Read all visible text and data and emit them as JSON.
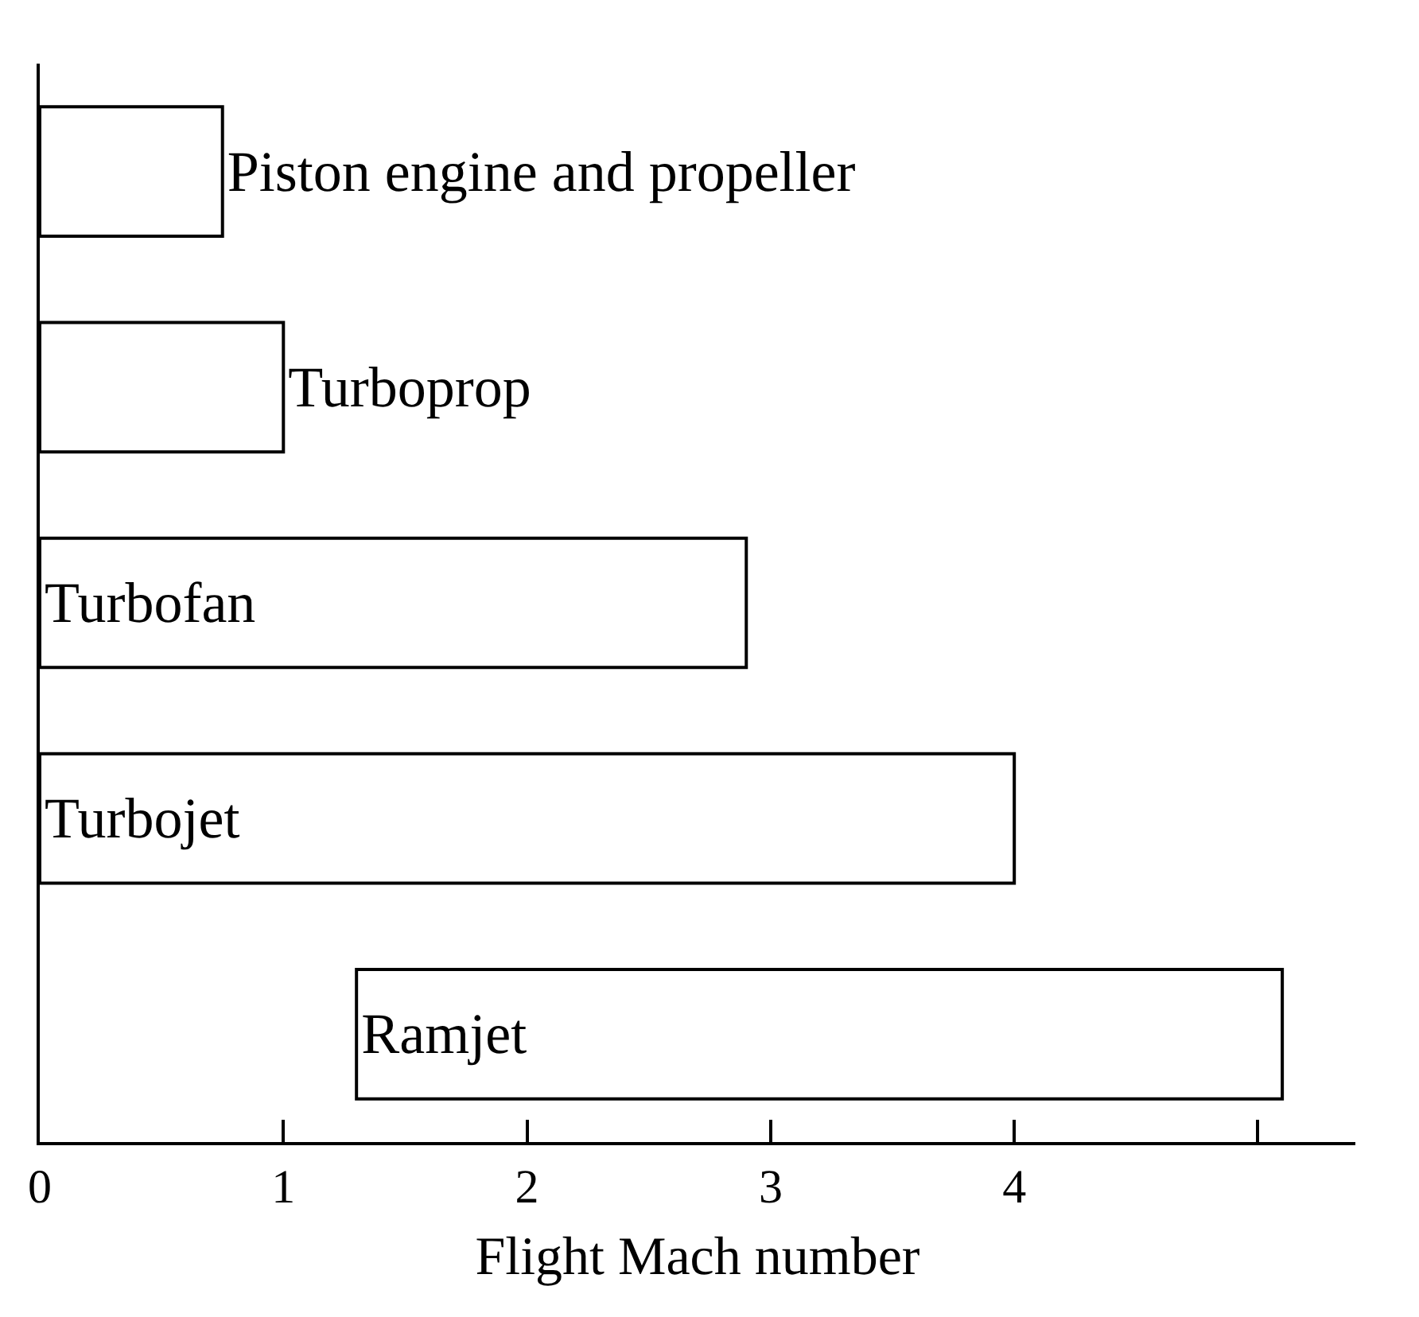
{
  "chart_data": {
    "type": "bar",
    "orientation": "horizontal",
    "xlabel": "Flight Mach number",
    "categories": [
      "Piston engine and propeller",
      "Turboprop",
      "Turbofan",
      "Turbojet",
      "Ramjet"
    ],
    "base": [
      0,
      0,
      0,
      0,
      1.3
    ],
    "values": [
      0.75,
      1.0,
      2.9,
      4.0,
      3.8
    ],
    "color": "#ffffff",
    "xlim": [
      0,
      5.4
    ],
    "xticks": [
      0,
      1,
      2,
      3,
      4,
      {
        "value": 5,
        "label": null
      }
    ],
    "tick_labels": "x"
  }
}
